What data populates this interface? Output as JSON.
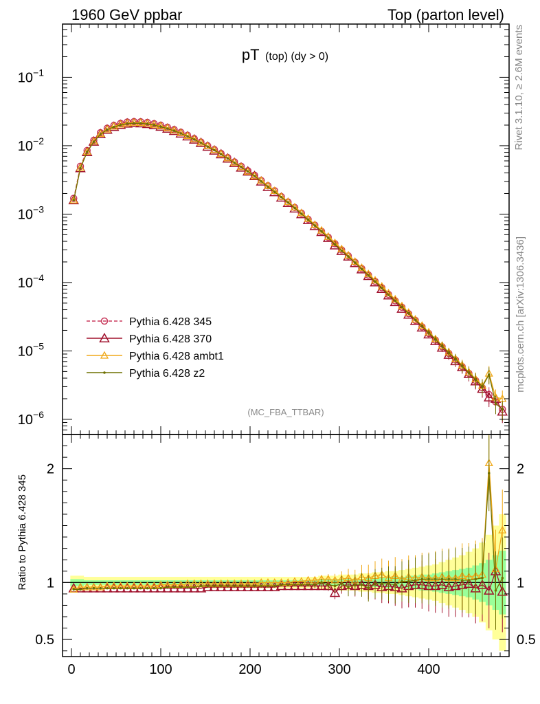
{
  "header": {
    "left": "1960 GeV ppbar",
    "right": "Top (parton level)"
  },
  "side": {
    "rivet": "Rivet 3.1.10, ≥ 2.6M events",
    "mcplots": "mcplots.cern.ch [arXiv:1306.3436]"
  },
  "plot_title_main": "pT",
  "plot_title_sub": "(top) (dy > 0)",
  "analysis_tag": "(MC_FBA_TTBAR)",
  "ratio_ylabel": "Ratio to Pythia 6.428 345",
  "colors": {
    "p345": "#c8375a",
    "p370": "#a0102c",
    "ambt1": "#f0a818",
    "z2": "#6f7000",
    "band_yellow": "#ffff99",
    "band_green": "#99ff99"
  },
  "chart_data": [
    {
      "type": "line",
      "panel": "main",
      "yscale": "log",
      "xlim": [
        -10,
        490
      ],
      "ylim": [
        6e-07,
        0.6
      ],
      "ytick_labels": [
        "10^-6",
        "10^-5",
        "10^-4",
        "10^-3",
        "10^-2",
        "10^-1"
      ],
      "legend_placement": "lower-left",
      "x": [
        2.5,
        10,
        17.5,
        25,
        32.5,
        40,
        47.5,
        55,
        62.5,
        70,
        77.5,
        85,
        92.5,
        100,
        107.5,
        115,
        122.5,
        130,
        137.5,
        145,
        152.5,
        160,
        167.5,
        175,
        182.5,
        190,
        197.5,
        205,
        212.5,
        220,
        227.5,
        235,
        242.5,
        250,
        257.5,
        265,
        272.5,
        280,
        287.5,
        295,
        302.5,
        310,
        317.5,
        325,
        332.5,
        340,
        347.5,
        355,
        362.5,
        370,
        377.5,
        385,
        392.5,
        400,
        407.5,
        415,
        422.5,
        430,
        437.5,
        445,
        452.5,
        460,
        467.5,
        475,
        482.5
      ],
      "series": [
        {
          "name": "Pythia 6.428 345",
          "marker": "circle-open",
          "line": "dashed",
          "values": [
            0.0017,
            0.005,
            0.0085,
            0.012,
            0.0155,
            0.018,
            0.0198,
            0.0212,
            0.0222,
            0.0225,
            0.0224,
            0.0219,
            0.021,
            0.0199,
            0.0186,
            0.0172,
            0.0157,
            0.0142,
            0.0127,
            0.0113,
            0.01,
            0.0088,
            0.0077,
            0.0067,
            0.0058,
            0.005,
            0.0043,
            0.0037,
            0.0031,
            0.0026,
            0.0022,
            0.0018,
            0.0015,
            0.00125,
            0.00103,
            0.00084,
            0.00069,
            0.00056,
            0.00046,
            0.00037,
            0.0003,
            0.000245,
            0.000198,
            0.00016,
            0.000129,
            0.000104,
            8.4e-05,
            6.7e-05,
            5.4e-05,
            4.35e-05,
            3.5e-05,
            2.8e-05,
            2.25e-05,
            1.8e-05,
            1.44e-05,
            1.15e-05,
            9.2e-06,
            7.4e-06,
            5.9e-06,
            4.7e-06,
            3.7e-06,
            2.9e-06,
            2.3e-06,
            1.8e-06,
            1.4e-06
          ]
        },
        {
          "name": "Pythia 6.428 370",
          "marker": "triangle-open",
          "line": "solid",
          "values": [
            0.0016,
            0.0047,
            0.0081,
            0.0115,
            0.0148,
            0.0172,
            0.0189,
            0.0202,
            0.0211,
            0.0214,
            0.0213,
            0.0208,
            0.02,
            0.019,
            0.0178,
            0.0165,
            0.0151,
            0.0137,
            0.0123,
            0.011,
            0.0097,
            0.0085,
            0.0075,
            0.0065,
            0.0056,
            0.0048,
            0.0042,
            0.0036,
            0.003,
            0.0025,
            0.0021,
            0.00175,
            0.00146,
            0.00121,
            0.001,
            0.00082,
            0.00067,
            0.00055,
            0.00045,
            0.00035,
            0.00029,
            0.00024,
            0.000193,
            0.000156,
            0.000125,
            0.000101,
            8.1e-05,
            6.5e-05,
            5.2e-05,
            4.15e-05,
            3.4e-05,
            2.75e-05,
            2.2e-05,
            1.75e-05,
            1.4e-05,
            1.12e-05,
            8.8e-06,
            7.1e-06,
            5.8e-06,
            4.6e-06,
            3.6e-06,
            2.8e-06,
            2.1e-06,
            2e-06,
            1.3e-06
          ]
        },
        {
          "name": "Pythia 6.428 ambt1",
          "marker": "triangle-open",
          "line": "solid",
          "values": [
            0.0016,
            0.0048,
            0.0082,
            0.0116,
            0.015,
            0.0174,
            0.0192,
            0.0205,
            0.0214,
            0.0218,
            0.0217,
            0.0212,
            0.0204,
            0.0194,
            0.0182,
            0.0168,
            0.0154,
            0.014,
            0.0125,
            0.0112,
            0.0099,
            0.0087,
            0.0076,
            0.0066,
            0.0057,
            0.0049,
            0.0042,
            0.0036,
            0.0031,
            0.0026,
            0.0022,
            0.0018,
            0.00151,
            0.00126,
            0.00104,
            0.00086,
            0.0007,
            0.00058,
            0.00047,
            0.00038,
            0.00031,
            0.00025,
            0.000203,
            0.000165,
            0.000134,
            0.000108,
            8.8e-05,
            7e-05,
            5.7e-05,
            4.55e-05,
            3.65e-05,
            2.9e-05,
            2.35e-05,
            1.88e-05,
            1.5e-05,
            1.2e-05,
            9.6e-06,
            7.7e-06,
            6.2e-06,
            4.9e-06,
            3.9e-06,
            3.1e-06,
            4.7e-06,
            2.1e-06,
            2e-06
          ]
        },
        {
          "name": "Pythia 6.428 z2",
          "marker": "dot",
          "line": "solid",
          "values": [
            0.0016,
            0.0047,
            0.0081,
            0.0114,
            0.0147,
            0.0171,
            0.0188,
            0.0201,
            0.021,
            0.0213,
            0.0213,
            0.0208,
            0.02,
            0.019,
            0.0178,
            0.0165,
            0.0151,
            0.0137,
            0.0123,
            0.011,
            0.0097,
            0.0086,
            0.0075,
            0.0065,
            0.0056,
            0.0049,
            0.0042,
            0.0036,
            0.003,
            0.0025,
            0.0021,
            0.00177,
            0.00148,
            0.00123,
            0.00101,
            0.00083,
            0.00068,
            0.00056,
            0.00045,
            0.00036,
            0.00029,
            0.00024,
            0.000195,
            0.000157,
            0.000127,
            0.000103,
            8.3e-05,
            6.6e-05,
            5.4e-05,
            4.4e-05,
            3.55e-05,
            2.85e-05,
            2.3e-05,
            1.85e-05,
            1.48e-05,
            1.18e-05,
            9.4e-06,
            7.6e-06,
            6e-06,
            4.8e-06,
            3.8e-06,
            3e-06,
            4.5e-06,
            1.7e-06,
            1.4e-06
          ]
        }
      ]
    },
    {
      "type": "line",
      "panel": "ratio",
      "xlim": [
        -10,
        490
      ],
      "ylim": [
        0.35,
        2.3
      ],
      "ylabel": "Ratio to Pythia 6.428 345",
      "xtick_labels": [
        0,
        100,
        200,
        300,
        400
      ],
      "ytick_labels": [
        0.5,
        1,
        2
      ],
      "bands": {
        "yellow": [
          0.06,
          0.06,
          0.05,
          0.05,
          0.05,
          0.05,
          0.05,
          0.05,
          0.05,
          0.05,
          0.05,
          0.05,
          0.05,
          0.05,
          0.05,
          0.05,
          0.05,
          0.05,
          0.05,
          0.05,
          0.05,
          0.05,
          0.05,
          0.05,
          0.05,
          0.05,
          0.05,
          0.05,
          0.05,
          0.05,
          0.05,
          0.05,
          0.05,
          0.05,
          0.05,
          0.05,
          0.05,
          0.06,
          0.06,
          0.06,
          0.07,
          0.07,
          0.07,
          0.08,
          0.08,
          0.09,
          0.09,
          0.1,
          0.1,
          0.11,
          0.12,
          0.13,
          0.14,
          0.15,
          0.16,
          0.18,
          0.2,
          0.22,
          0.24,
          0.27,
          0.3,
          0.35,
          0.42,
          0.5,
          0.6
        ],
        "green": [
          0.03,
          0.03,
          0.02,
          0.02,
          0.02,
          0.02,
          0.02,
          0.02,
          0.02,
          0.02,
          0.02,
          0.02,
          0.02,
          0.02,
          0.02,
          0.02,
          0.02,
          0.02,
          0.02,
          0.02,
          0.02,
          0.02,
          0.02,
          0.02,
          0.02,
          0.02,
          0.02,
          0.02,
          0.02,
          0.02,
          0.02,
          0.02,
          0.02,
          0.02,
          0.02,
          0.02,
          0.02,
          0.03,
          0.03,
          0.03,
          0.03,
          0.03,
          0.03,
          0.03,
          0.04,
          0.04,
          0.04,
          0.05,
          0.05,
          0.05,
          0.06,
          0.06,
          0.07,
          0.07,
          0.08,
          0.09,
          0.1,
          0.11,
          0.12,
          0.13,
          0.15,
          0.17,
          0.2,
          0.24,
          0.28
        ]
      },
      "series": [
        {
          "name": "Pythia 6.428 370",
          "marker": "triangle-open",
          "values": [
            0.95,
            0.95,
            0.95,
            0.95,
            0.95,
            0.95,
            0.95,
            0.95,
            0.95,
            0.95,
            0.95,
            0.95,
            0.95,
            0.95,
            0.95,
            0.95,
            0.95,
            0.95,
            0.95,
            0.95,
            0.96,
            0.96,
            0.96,
            0.96,
            0.96,
            0.96,
            0.96,
            0.96,
            0.96,
            0.96,
            0.96,
            0.97,
            0.97,
            0.97,
            0.97,
            0.97,
            0.97,
            0.97,
            0.97,
            0.91,
            0.97,
            0.98,
            0.97,
            0.98,
            0.97,
            0.98,
            0.96,
            0.97,
            0.96,
            0.95,
            0.97,
            0.98,
            0.98,
            0.97,
            0.97,
            0.98,
            0.96,
            0.97,
            0.98,
            0.99,
            0.95,
            0.98,
            0.93,
            1.1,
            0.92
          ]
        },
        {
          "name": "Pythia 6.428 ambt1",
          "marker": "triangle-open",
          "values": [
            0.94,
            0.96,
            0.96,
            0.96,
            0.96,
            0.97,
            0.97,
            0.97,
            0.97,
            0.97,
            0.97,
            0.97,
            0.97,
            0.98,
            0.98,
            0.98,
            0.98,
            0.99,
            0.99,
            0.99,
            0.99,
            0.99,
            0.99,
            0.99,
            0.99,
            0.99,
            0.99,
            0.99,
            1.0,
            1.0,
            1.0,
            1.0,
            1.0,
            1.01,
            1.01,
            1.02,
            1.02,
            1.03,
            1.03,
            1.02,
            1.03,
            1.04,
            1.02,
            1.05,
            1.04,
            1.06,
            1.07,
            1.04,
            1.06,
            1.03,
            1.05,
            1.04,
            1.05,
            1.04,
            1.04,
            1.05,
            1.04,
            1.04,
            1.06,
            1.05,
            1.06,
            1.07,
            2.05,
            1.12,
            1.46
          ]
        },
        {
          "name": "Pythia 6.428 z2",
          "marker": "dot",
          "values": [
            0.94,
            0.94,
            0.95,
            0.95,
            0.95,
            0.95,
            0.95,
            0.95,
            0.95,
            0.95,
            0.95,
            0.95,
            0.95,
            0.95,
            0.96,
            0.96,
            0.96,
            0.96,
            0.96,
            0.97,
            0.97,
            0.97,
            0.97,
            0.97,
            0.97,
            0.97,
            0.97,
            0.97,
            0.97,
            0.97,
            0.97,
            0.98,
            0.98,
            0.98,
            0.98,
            0.98,
            0.98,
            1.0,
            0.98,
            0.97,
            0.99,
            0.96,
            0.98,
            0.98,
            0.95,
            0.99,
            0.99,
            0.99,
            0.98,
            1.01,
            1.01,
            1.02,
            1.03,
            1.03,
            1.03,
            1.03,
            1.03,
            1.03,
            1.02,
            1.02,
            1.03,
            1.04,
            1.96,
            0.93,
            1.04
          ]
        }
      ]
    }
  ]
}
